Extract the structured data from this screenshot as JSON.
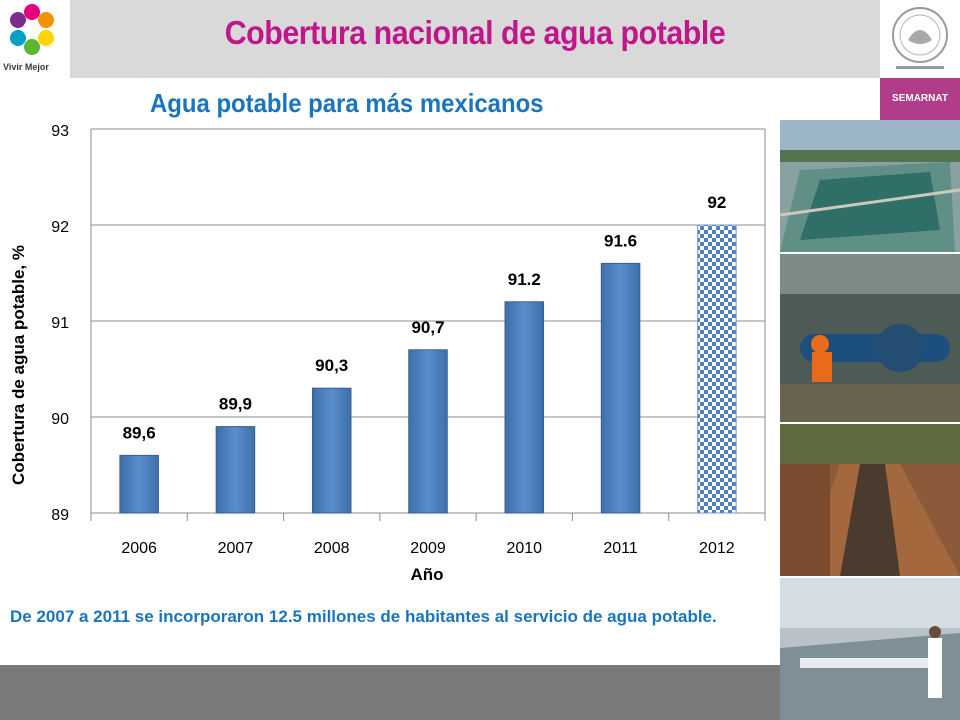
{
  "header": {
    "title": "Cobertura nacional de agua potable",
    "logo_text": "Vivir Mejor",
    "badge": "SEMARNAT"
  },
  "chart_data": {
    "type": "bar",
    "title": "Agua potable para más mexicanos",
    "xlabel": "Año",
    "ylabel": "Cobertura de agua potable, %",
    "categories": [
      "2006",
      "2007",
      "2008",
      "2009",
      "2010",
      "2011",
      "2012"
    ],
    "values": [
      89.6,
      89.9,
      90.3,
      90.7,
      91.2,
      91.6,
      92
    ],
    "data_labels": [
      "89,6",
      "89,9",
      "90,3",
      "90,7",
      "91.2",
      "91.6",
      "92"
    ],
    "projected_index": 6,
    "ylim": [
      89,
      93
    ],
    "yticks": [
      89,
      90,
      91,
      92,
      93
    ],
    "grid": true,
    "bar_color": "#4f81bd",
    "projected_pattern": "checkered blue"
  },
  "note": "De 2007 a 2011 se incorporaron 12.5 millones de habitantes al servicio de agua potable.",
  "colors": {
    "title": "#c0168a",
    "subtitle": "#1a75bc",
    "bar": "#4f81bd"
  }
}
